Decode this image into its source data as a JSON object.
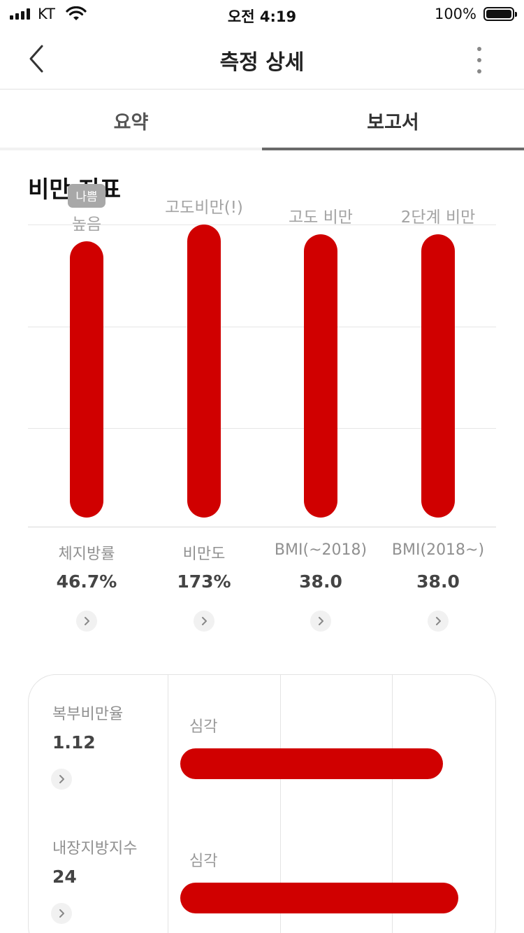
{
  "status_bar": {
    "carrier": "KT",
    "time": "오전 4:19",
    "battery": "100%"
  },
  "nav": {
    "title": "측정 상세",
    "back_icon": "chevron-left-icon",
    "more_icon": "more-vertical-icon"
  },
  "tabs": [
    {
      "label": "요약",
      "active": false
    },
    {
      "label": "보고서",
      "active": true
    }
  ],
  "section_title": "비만 지표",
  "colors": {
    "bar": "#d00000",
    "badge": "#a8a8a8",
    "grid": "#e6e6e6"
  },
  "chart_data": {
    "type": "bar",
    "level_scale": "categorical",
    "categories": [
      "체지방률",
      "비만도",
      "BMI(~2018)",
      "BMI(2018~)"
    ],
    "values": [
      2.83,
      3.0,
      2.9,
      2.9
    ],
    "level_labels": [
      "높음",
      "고도비만(!)",
      "고도 비만",
      "2단계 비만"
    ],
    "display_values": [
      "46.7%",
      "173%",
      "38.0",
      "38.0"
    ],
    "badge": {
      "bar_index": 0,
      "text": "나쁨"
    },
    "ylim": [
      0,
      3
    ],
    "grid": true
  },
  "metrics": [
    {
      "name": "체지방률",
      "value": "46.7%",
      "level": "높음"
    },
    {
      "name": "비만도",
      "value": "173%",
      "level": "고도비만(!)"
    },
    {
      "name": "BMI(~2018)",
      "value": "38.0",
      "level": "고도 비만"
    },
    {
      "name": "BMI(2018~)",
      "value": "38.0",
      "level": "2단계 비만"
    }
  ],
  "detail_card": {
    "rows": [
      {
        "name": "복부비만율",
        "value": "1.12",
        "level": "심각",
        "fill": 0.86
      },
      {
        "name": "내장지방지수",
        "value": "24",
        "level": "심각",
        "fill": 0.91
      }
    ]
  }
}
